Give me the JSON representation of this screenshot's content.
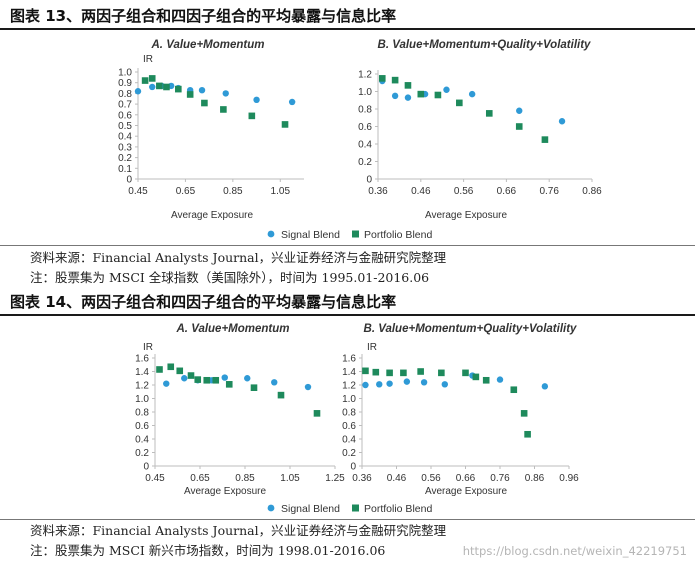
{
  "colors": {
    "signal": "#2f9ad6",
    "portfolio": "#1e8a5c",
    "axis": "#bdbdbd"
  },
  "legend": {
    "signal": "Signal Blend",
    "portfolio": "Portfolio Blend"
  },
  "figures": [
    {
      "title": "图表 13、两因子组合和四因子组合的平均暴露与信息比率",
      "source": "资料来源：Financial Analysts Journal，兴业证券经济与金融研究院整理",
      "note": "注：股票集为 MSCI 全球指数（美国除外），时间为 1995.01-2016.06"
    },
    {
      "title": "图表 14、两因子组合和四因子组合的平均暴露与信息比率",
      "source": "资料来源：Financial Analysts Journal，兴业证券经济与金融研究院整理",
      "note": "注：股票集为 MSCI 新兴市场指数，时间为 1998.01-2016.06"
    }
  ],
  "watermark": "https://blog.csdn.net/weixin_42219751",
  "chart_data": [
    {
      "type": "scatter",
      "title": "A. Value+Momentum",
      "xlabel": "Average Exposure",
      "ylabel": "IR",
      "xlim": [
        0.45,
        1.15
      ],
      "ylim": [
        0,
        1.0
      ],
      "xticks": [
        "0.45",
        "0.65",
        "0.85",
        "1.05"
      ],
      "yticks": [
        "0",
        "0.1",
        "0.2",
        "0.3",
        "0.4",
        "0.5",
        "0.6",
        "0.7",
        "0.8",
        "0.9",
        "1.0"
      ],
      "grid": false,
      "legend_position": "bottom",
      "series": [
        {
          "name": "Signal Blend",
          "marker": "circle",
          "x": [
            0.45,
            0.51,
            0.55,
            0.59,
            0.62,
            0.67,
            0.72,
            0.82,
            0.95,
            1.1
          ],
          "y": [
            0.82,
            0.86,
            0.87,
            0.87,
            0.85,
            0.83,
            0.83,
            0.8,
            0.74,
            0.72
          ]
        },
        {
          "name": "Portfolio Blend",
          "marker": "square",
          "x": [
            0.48,
            0.51,
            0.54,
            0.57,
            0.62,
            0.67,
            0.73,
            0.81,
            0.93,
            1.07
          ],
          "y": [
            0.92,
            0.94,
            0.87,
            0.86,
            0.84,
            0.79,
            0.71,
            0.65,
            0.59,
            0.51
          ]
        }
      ]
    },
    {
      "type": "scatter",
      "title": "B. Value+Momentum+Quality+Volatility",
      "xlabel": "Average Exposure",
      "ylabel": "",
      "xlim": [
        0.36,
        0.86
      ],
      "ylim": [
        0,
        1.2
      ],
      "xticks": [
        "0.36",
        "0.46",
        "0.56",
        "0.66",
        "0.76",
        "0.86"
      ],
      "yticks": [
        "0",
        "0.2",
        "0.4",
        "0.6",
        "0.8",
        "1.0",
        "1.2"
      ],
      "grid": false,
      "legend_position": "bottom",
      "series": [
        {
          "name": "Signal Blend",
          "marker": "circle",
          "x": [
            0.37,
            0.4,
            0.43,
            0.47,
            0.52,
            0.58,
            0.69,
            0.79
          ],
          "y": [
            1.12,
            0.95,
            0.93,
            0.97,
            1.02,
            0.97,
            0.78,
            0.66
          ]
        },
        {
          "name": "Portfolio Blend",
          "marker": "square",
          "x": [
            0.37,
            0.4,
            0.43,
            0.46,
            0.5,
            0.55,
            0.62,
            0.69,
            0.75
          ],
          "y": [
            1.15,
            1.13,
            1.07,
            0.97,
            0.96,
            0.87,
            0.75,
            0.6,
            0.45
          ]
        }
      ]
    },
    {
      "type": "scatter",
      "title": "A. Value+Momentum",
      "xlabel": "Average Exposure",
      "ylabel": "IR",
      "xlim": [
        0.45,
        1.25
      ],
      "ylim": [
        0,
        1.6
      ],
      "xticks": [
        "0.45",
        "0.65",
        "0.85",
        "1.05",
        "1.25"
      ],
      "yticks": [
        "0",
        "0.2",
        "0.4",
        "0.6",
        "0.8",
        "1.0",
        "1.2",
        "1.4",
        "1.6"
      ],
      "grid": false,
      "legend_position": "bottom",
      "series": [
        {
          "name": "Signal Blend",
          "marker": "circle",
          "x": [
            0.5,
            0.58,
            0.64,
            0.7,
            0.76,
            0.86,
            0.98,
            1.13
          ],
          "y": [
            1.22,
            1.3,
            1.27,
            1.27,
            1.31,
            1.3,
            1.24,
            1.17
          ]
        },
        {
          "name": "Portfolio Blend",
          "marker": "square",
          "x": [
            0.47,
            0.52,
            0.56,
            0.61,
            0.64,
            0.68,
            0.72,
            0.78,
            0.89,
            1.01,
            1.17
          ],
          "y": [
            1.43,
            1.47,
            1.41,
            1.34,
            1.28,
            1.27,
            1.27,
            1.21,
            1.16,
            1.05,
            0.78
          ]
        }
      ]
    },
    {
      "type": "scatter",
      "title": "B. Value+Momentum+Quality+Volatility",
      "xlabel": "Average Exposure",
      "ylabel": "IR",
      "xlim": [
        0.36,
        0.96
      ],
      "ylim": [
        0,
        1.6
      ],
      "xticks": [
        "0.36",
        "0.46",
        "0.56",
        "0.66",
        "0.76",
        "0.86",
        "0.96"
      ],
      "yticks": [
        "0",
        "0.2",
        "0.4",
        "0.6",
        "0.8",
        "1.0",
        "1.2",
        "1.4",
        "1.6"
      ],
      "grid": false,
      "legend_position": "bottom",
      "series": [
        {
          "name": "Signal Blend",
          "marker": "circle",
          "x": [
            0.37,
            0.41,
            0.44,
            0.49,
            0.54,
            0.6,
            0.68,
            0.76,
            0.89
          ],
          "y": [
            1.2,
            1.21,
            1.22,
            1.25,
            1.24,
            1.21,
            1.34,
            1.28,
            1.18
          ]
        },
        {
          "name": "Portfolio Blend",
          "marker": "square",
          "x": [
            0.37,
            0.4,
            0.44,
            0.48,
            0.53,
            0.59,
            0.66,
            0.69,
            0.72,
            0.8,
            0.83,
            0.84
          ],
          "y": [
            1.41,
            1.39,
            1.38,
            1.38,
            1.4,
            1.38,
            1.38,
            1.32,
            1.27,
            1.13,
            0.78,
            0.47
          ]
        }
      ]
    }
  ]
}
